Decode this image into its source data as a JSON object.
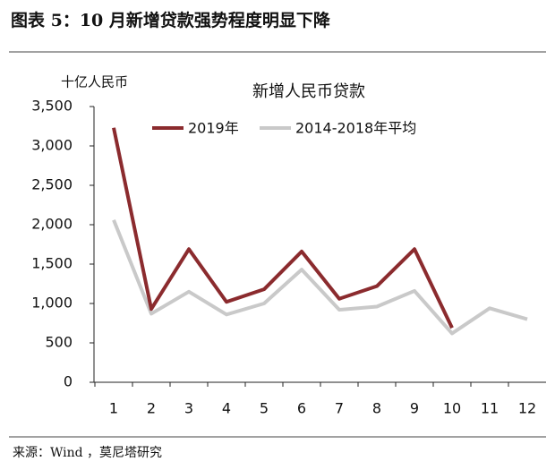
{
  "header": {
    "title": "图表 5：10 月新增贷款强势程度明显下降"
  },
  "chart_data": {
    "type": "line",
    "title": "新增人民币贷款",
    "y_label": "十亿人民币",
    "categories": [
      "1",
      "2",
      "3",
      "4",
      "5",
      "6",
      "7",
      "8",
      "9",
      "10",
      "11",
      "12"
    ],
    "series": [
      {
        "name": "2019年",
        "color": "#8b2b2e",
        "values": [
          3230,
          930,
          1690,
          1020,
          1180,
          1660,
          1060,
          1220,
          1690,
          690,
          null,
          null
        ]
      },
      {
        "name": "2014-2018年平均",
        "color": "#c9c9c9",
        "values": [
          2060,
          870,
          1150,
          860,
          1000,
          1430,
          920,
          960,
          1160,
          620,
          940,
          800
        ]
      }
    ],
    "ylim": [
      0,
      3500
    ],
    "yticks": [
      0,
      500,
      {
        "value": 1000,
        "label": "1,000"
      },
      {
        "value": 1500,
        "label": "1,500"
      },
      {
        "value": 2000,
        "label": "2,000"
      },
      {
        "value": 2500,
        "label": "2,500"
      },
      {
        "value": 3000,
        "label": "3,000"
      },
      {
        "value": 3500,
        "label": "3,500"
      }
    ],
    "grid": false,
    "legend": "top"
  },
  "footer": {
    "source": "来源：Wind ，莫尼塔研究"
  }
}
